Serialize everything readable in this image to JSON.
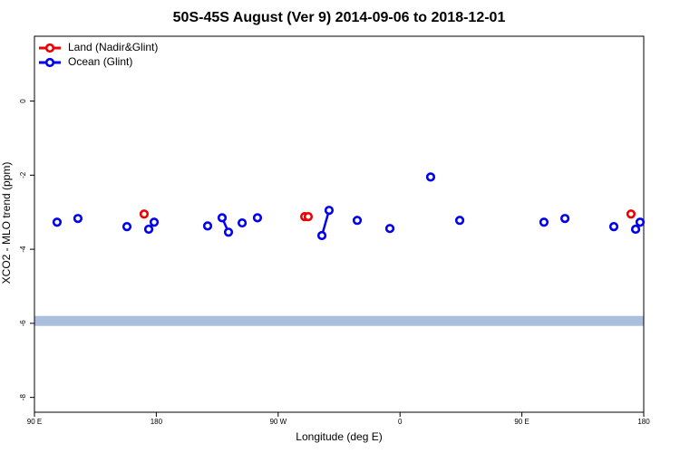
{
  "chart_data": {
    "type": "line",
    "title": "50S-45S August (Ver 9)   2014-09-06 to 2018-12-01",
    "xlabel": "Longitude (deg E)",
    "ylabel": "XCO2 - MLO trend (ppm)",
    "xlim": [
      90,
      540
    ],
    "ylim": [
      -8.4,
      1.75
    ],
    "xticks": [
      {
        "value": 90,
        "label": "90 E"
      },
      {
        "value": 180,
        "label": "180"
      },
      {
        "value": 270,
        "label": "90 W"
      },
      {
        "value": 360,
        "label": "0"
      },
      {
        "value": 450,
        "label": "90 E"
      },
      {
        "value": 540,
        "label": "180"
      }
    ],
    "yticks": [
      0,
      -2,
      -4,
      -6,
      -8
    ],
    "band": {
      "ymin": -6.07,
      "ymax": -5.8,
      "color": "#a9bfdc"
    },
    "legend": "top-left",
    "series": [
      {
        "name": "Land (Nadir&Glint)",
        "color": "#ee0000",
        "x": [
          171.0,
          null,
          289.6,
          292.2,
          null,
          530.6
        ],
        "values": [
          -3.05,
          null,
          -3.12,
          -3.12,
          null,
          -3.05
        ]
      },
      {
        "name": "Ocean (Glint)",
        "color": "#0000ee",
        "x": [
          106.7,
          null,
          122.1,
          null,
          158.3,
          null,
          174.4,
          null,
          178.4,
          null,
          217.9,
          null,
          228.6,
          233.3,
          null,
          243.4,
          null,
          254.7,
          null,
          302.3,
          307.6,
          null,
          328.4,
          null,
          352.5,
          null,
          382.6,
          null,
          404.1,
          null,
          466.3,
          null,
          481.8,
          null,
          517.9,
          null,
          534.0,
          null,
          537.3
        ],
        "values": [
          -3.27,
          null,
          -3.17,
          null,
          -3.39,
          null,
          -3.46,
          null,
          -3.27,
          null,
          -3.37,
          null,
          -3.15,
          -3.54,
          null,
          -3.29,
          null,
          -3.15,
          null,
          -3.63,
          -2.95,
          null,
          -3.22,
          null,
          -3.44,
          null,
          -2.05,
          null,
          -3.22,
          null,
          -3.27,
          null,
          -3.17,
          null,
          -3.39,
          null,
          -3.46,
          null,
          -3.27
        ]
      }
    ]
  }
}
